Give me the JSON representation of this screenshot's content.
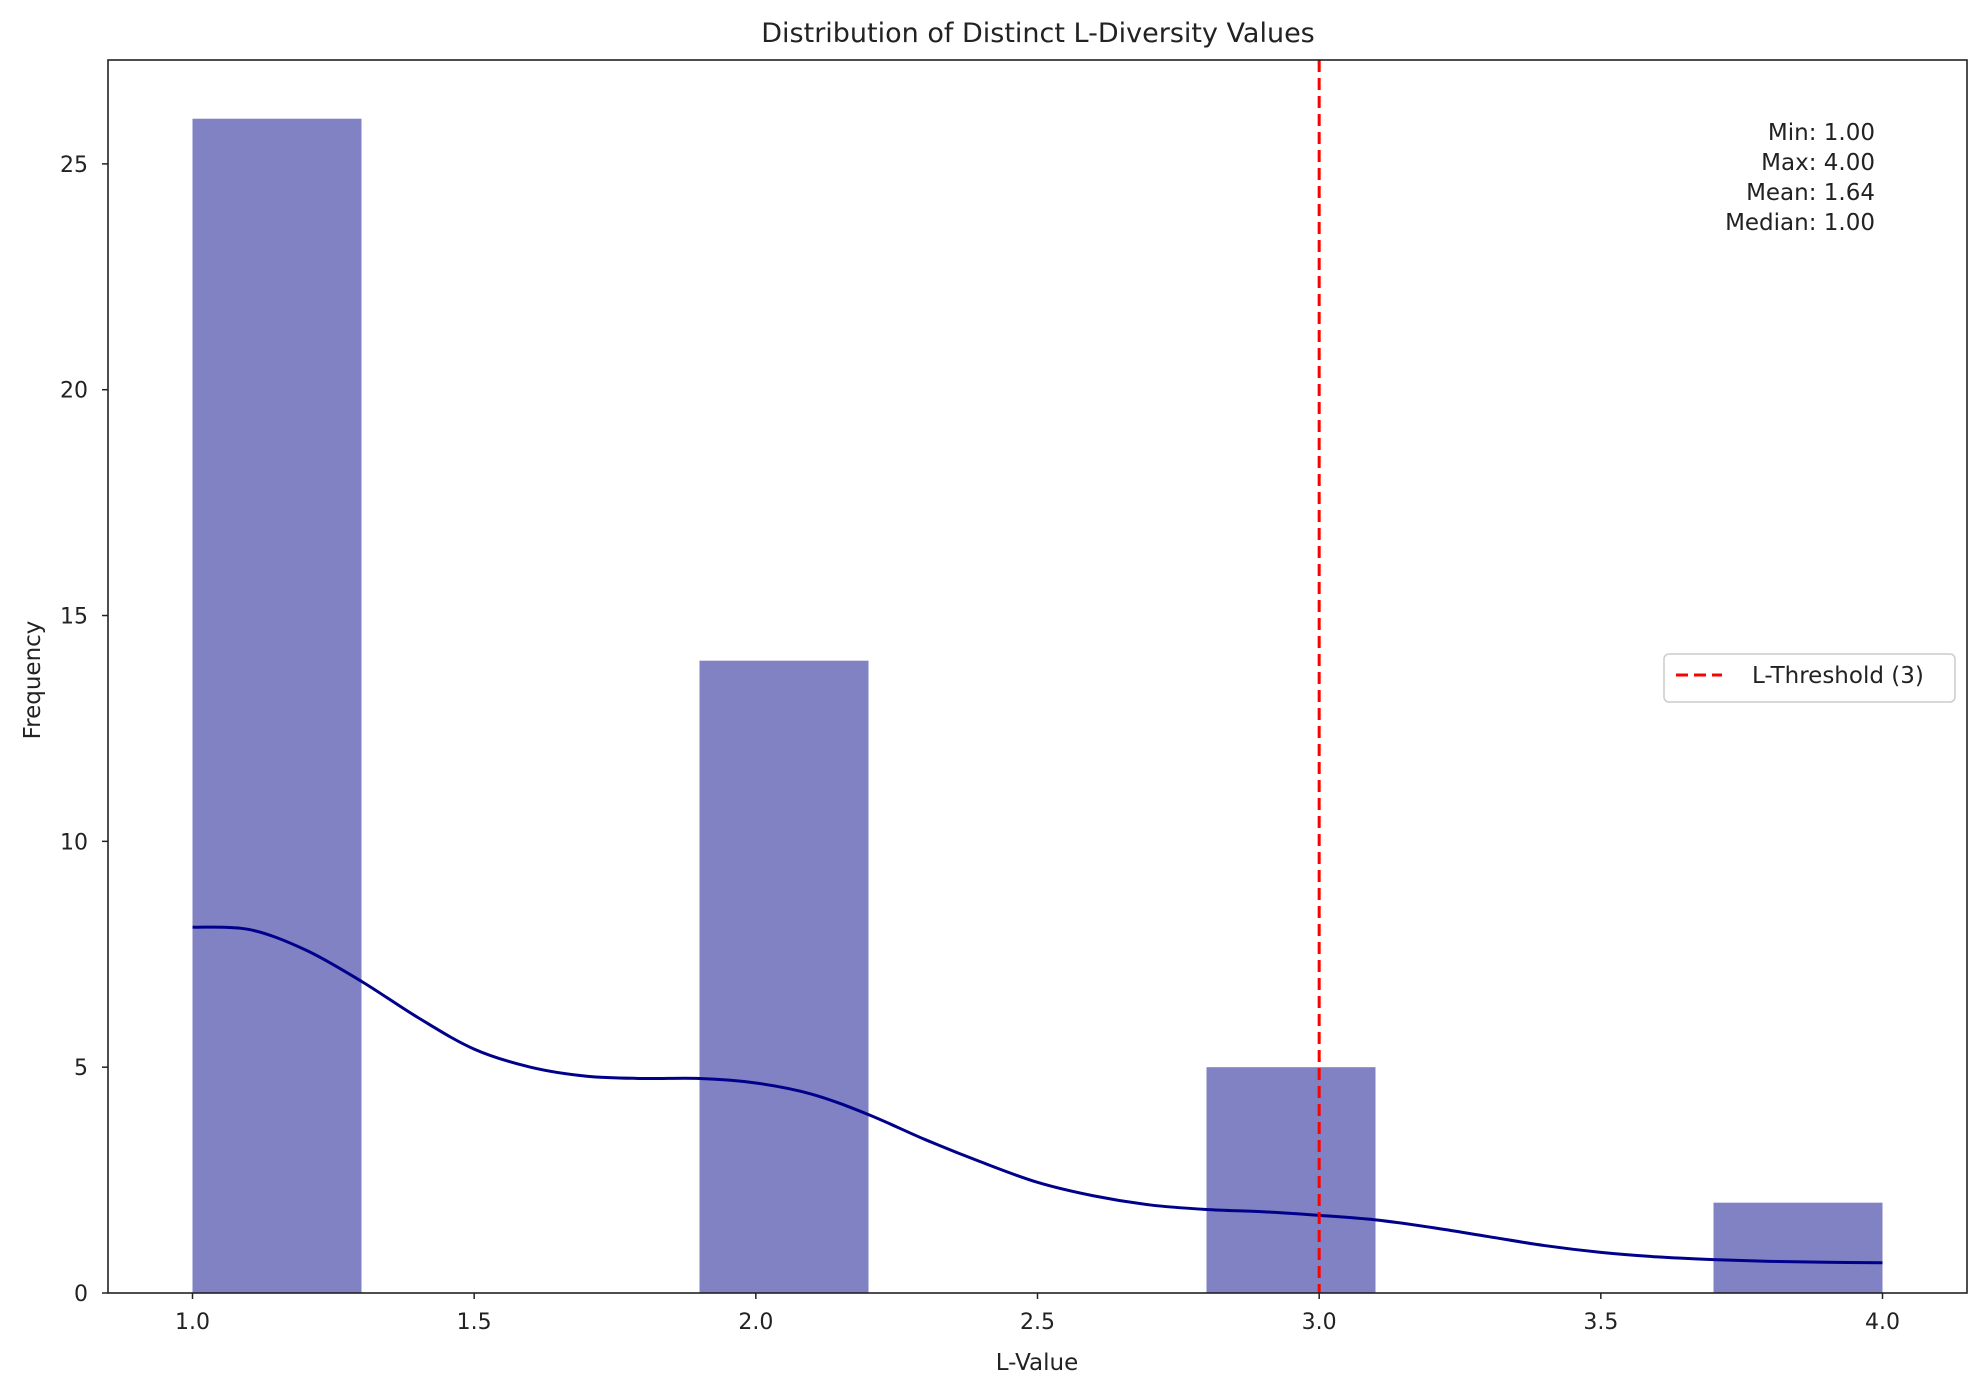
{
  "chart_data": {
    "type": "bar",
    "title": "Distribution of Distinct L-Diversity Values",
    "xlabel": "L-Value",
    "ylabel": "Frequency",
    "xlim": [
      0.85,
      4.15
    ],
    "ylim": [
      0,
      27.3
    ],
    "xticks": [
      1.0,
      1.5,
      2.0,
      2.5,
      3.0,
      3.5,
      4.0
    ],
    "xtick_labels": [
      "1.0",
      "1.5",
      "2.0",
      "2.5",
      "3.0",
      "3.5",
      "4.0"
    ],
    "yticks": [
      0,
      5,
      10,
      15,
      20,
      25
    ],
    "ytick_labels": [
      "0",
      "5",
      "10",
      "15",
      "20",
      "25"
    ],
    "grid": false,
    "bins": [
      {
        "start": 1.0,
        "end": 1.3,
        "count": 26
      },
      {
        "start": 1.3,
        "end": 1.6,
        "count": 0
      },
      {
        "start": 1.6,
        "end": 1.9,
        "count": 0
      },
      {
        "start": 1.9,
        "end": 2.2,
        "count": 14
      },
      {
        "start": 2.2,
        "end": 2.5,
        "count": 0
      },
      {
        "start": 2.5,
        "end": 2.8,
        "count": 0
      },
      {
        "start": 2.8,
        "end": 3.1,
        "count": 5
      },
      {
        "start": 3.1,
        "end": 3.4,
        "count": 0
      },
      {
        "start": 3.4,
        "end": 3.7,
        "count": 0
      },
      {
        "start": 3.7,
        "end": 4.0,
        "count": 2
      }
    ],
    "bar_color": "#8082c4",
    "kde": {
      "color": "#00008b",
      "x": [
        1.0,
        1.1,
        1.2,
        1.3,
        1.4,
        1.5,
        1.6,
        1.7,
        1.8,
        1.9,
        2.0,
        2.1,
        2.2,
        2.3,
        2.4,
        2.5,
        2.6,
        2.7,
        2.8,
        2.9,
        3.0,
        3.1,
        3.2,
        3.3,
        3.4,
        3.5,
        3.6,
        3.7,
        3.8,
        3.9,
        4.0
      ],
      "y": [
        8.1,
        8.05,
        7.6,
        6.9,
        6.1,
        5.4,
        5.0,
        4.8,
        4.75,
        4.75,
        4.65,
        4.4,
        3.95,
        3.4,
        2.9,
        2.45,
        2.15,
        1.95,
        1.85,
        1.8,
        1.72,
        1.62,
        1.45,
        1.25,
        1.05,
        0.9,
        0.8,
        0.74,
        0.7,
        0.68,
        0.67
      ]
    },
    "threshold": {
      "x": 3.0,
      "label": "L-Threshold (3)",
      "color": "#ff0000"
    },
    "legend": {
      "placement": "center-right",
      "entries": [
        "L-Threshold (3)"
      ]
    },
    "stats": [
      "Min: 1.00",
      "Max: 4.00",
      "Mean: 1.64",
      "Median: 1.00"
    ]
  }
}
